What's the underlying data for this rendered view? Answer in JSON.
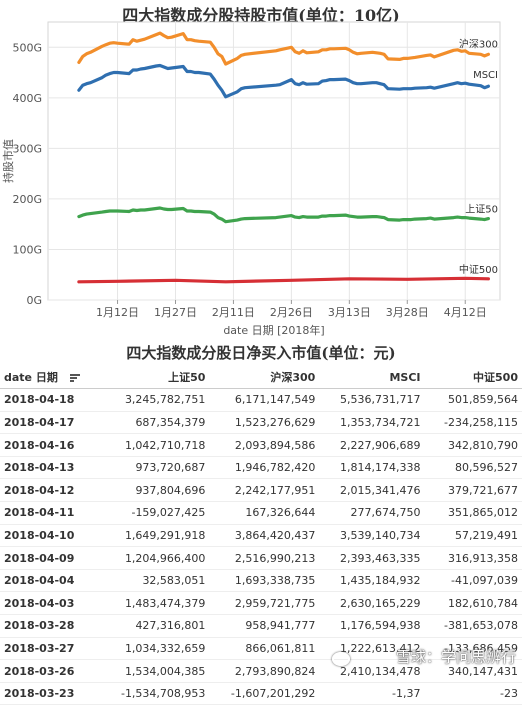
{
  "chart_data": {
    "type": "line",
    "title": "四大指数成分股持股市值(单位：10亿)",
    "xlabel": "date 日期 [2018年]",
    "ylabel": "持股市值",
    "x_ticks": [
      "1月12日",
      "1月27日",
      "2月11日",
      "2月26日",
      "3月13日",
      "3月28日",
      "4月12日"
    ],
    "y_ticks": [
      "0G",
      "100G",
      "200G",
      "300G",
      "400G",
      "500G"
    ],
    "ylim": [
      0,
      550
    ],
    "x_start": "2018-01-02",
    "x_end": "2018-04-18",
    "grid": true,
    "series": [
      {
        "name": "沪深300",
        "color": "#f28e2b",
        "x": [
          "2018-01-02",
          "2018-01-03",
          "2018-01-04",
          "2018-01-05",
          "2018-01-08",
          "2018-01-09",
          "2018-01-10",
          "2018-01-11",
          "2018-01-12",
          "2018-01-15",
          "2018-01-16",
          "2018-01-17",
          "2018-01-18",
          "2018-01-19",
          "2018-01-22",
          "2018-01-23",
          "2018-01-24",
          "2018-01-25",
          "2018-01-26",
          "2018-01-29",
          "2018-01-30",
          "2018-01-31",
          "2018-02-01",
          "2018-02-02",
          "2018-02-05",
          "2018-02-06",
          "2018-02-07",
          "2018-02-08",
          "2018-02-09",
          "2018-02-12",
          "2018-02-13",
          "2018-02-14",
          "2018-02-22",
          "2018-02-23",
          "2018-02-26",
          "2018-02-27",
          "2018-02-28",
          "2018-03-01",
          "2018-03-02",
          "2018-03-05",
          "2018-03-06",
          "2018-03-07",
          "2018-03-08",
          "2018-03-09",
          "2018-03-12",
          "2018-03-13",
          "2018-03-14",
          "2018-03-15",
          "2018-03-16",
          "2018-03-19",
          "2018-03-20",
          "2018-03-21",
          "2018-03-22",
          "2018-03-23",
          "2018-03-26",
          "2018-03-27",
          "2018-03-28",
          "2018-03-29",
          "2018-03-30",
          "2018-04-02",
          "2018-04-03",
          "2018-04-04",
          "2018-04-09",
          "2018-04-10",
          "2018-04-11",
          "2018-04-12",
          "2018-04-13",
          "2018-04-16",
          "2018-04-17",
          "2018-04-18"
        ],
        "values": [
          470,
          482,
          487,
          490,
          502,
          505,
          508,
          509,
          508,
          506,
          515,
          512,
          514,
          516,
          525,
          528,
          523,
          519,
          520,
          527,
          515,
          515,
          513,
          512,
          510,
          500,
          487,
          482,
          467,
          478,
          484,
          486,
          493,
          495,
          500,
          491,
          488,
          493,
          489,
          491,
          495,
          495,
          497,
          497,
          498,
          495,
          490,
          487,
          488,
          490,
          489,
          488,
          486,
          477,
          476,
          478,
          478,
          479,
          480,
          484,
          485,
          481,
          494,
          495,
          492,
          493,
          488,
          486,
          483,
          486
        ]
      },
      {
        "name": "MSCI",
        "color": "#2f6fb0",
        "x": [
          "2018-01-02",
          "2018-01-03",
          "2018-01-04",
          "2018-01-05",
          "2018-01-08",
          "2018-01-09",
          "2018-01-10",
          "2018-01-11",
          "2018-01-12",
          "2018-01-15",
          "2018-01-16",
          "2018-01-17",
          "2018-01-18",
          "2018-01-19",
          "2018-01-22",
          "2018-01-23",
          "2018-01-24",
          "2018-01-25",
          "2018-01-26",
          "2018-01-29",
          "2018-01-30",
          "2018-01-31",
          "2018-02-01",
          "2018-02-02",
          "2018-02-05",
          "2018-02-06",
          "2018-02-07",
          "2018-02-08",
          "2018-02-09",
          "2018-02-12",
          "2018-02-13",
          "2018-02-14",
          "2018-02-22",
          "2018-02-23",
          "2018-02-26",
          "2018-02-27",
          "2018-02-28",
          "2018-03-01",
          "2018-03-02",
          "2018-03-05",
          "2018-03-06",
          "2018-03-07",
          "2018-03-08",
          "2018-03-09",
          "2018-03-12",
          "2018-03-13",
          "2018-03-14",
          "2018-03-15",
          "2018-03-16",
          "2018-03-19",
          "2018-03-20",
          "2018-03-21",
          "2018-03-22",
          "2018-03-23",
          "2018-03-26",
          "2018-03-27",
          "2018-03-28",
          "2018-03-29",
          "2018-03-30",
          "2018-04-02",
          "2018-04-03",
          "2018-04-04",
          "2018-04-09",
          "2018-04-10",
          "2018-04-11",
          "2018-04-12",
          "2018-04-13",
          "2018-04-16",
          "2018-04-17",
          "2018-04-18"
        ],
        "values": [
          415,
          425,
          428,
          430,
          440,
          445,
          448,
          450,
          450,
          448,
          455,
          455,
          457,
          458,
          463,
          464,
          461,
          458,
          459,
          462,
          452,
          452,
          450,
          450,
          447,
          437,
          425,
          415,
          402,
          412,
          418,
          420,
          425,
          426,
          436,
          428,
          426,
          430,
          427,
          428,
          433,
          434,
          436,
          436,
          437,
          434,
          430,
          428,
          428,
          430,
          430,
          428,
          426,
          418,
          417,
          418,
          418,
          418,
          419,
          420,
          421,
          419,
          428,
          430,
          428,
          429,
          427,
          424,
          420,
          423
        ]
      },
      {
        "name": "上证50",
        "color": "#3fa34d",
        "x": [
          "2018-01-02",
          "2018-01-03",
          "2018-01-04",
          "2018-01-05",
          "2018-01-08",
          "2018-01-09",
          "2018-01-10",
          "2018-01-11",
          "2018-01-12",
          "2018-01-15",
          "2018-01-16",
          "2018-01-17",
          "2018-01-18",
          "2018-01-19",
          "2018-01-22",
          "2018-01-23",
          "2018-01-24",
          "2018-01-25",
          "2018-01-26",
          "2018-01-29",
          "2018-01-30",
          "2018-01-31",
          "2018-02-01",
          "2018-02-02",
          "2018-02-05",
          "2018-02-06",
          "2018-02-07",
          "2018-02-08",
          "2018-02-09",
          "2018-02-12",
          "2018-02-13",
          "2018-02-14",
          "2018-02-22",
          "2018-02-23",
          "2018-02-26",
          "2018-02-27",
          "2018-02-28",
          "2018-03-01",
          "2018-03-02",
          "2018-03-05",
          "2018-03-06",
          "2018-03-07",
          "2018-03-08",
          "2018-03-09",
          "2018-03-12",
          "2018-03-13",
          "2018-03-14",
          "2018-03-15",
          "2018-03-16",
          "2018-03-19",
          "2018-03-20",
          "2018-03-21",
          "2018-03-22",
          "2018-03-23",
          "2018-03-26",
          "2018-03-27",
          "2018-03-28",
          "2018-03-29",
          "2018-03-30",
          "2018-04-02",
          "2018-04-03",
          "2018-04-04",
          "2018-04-09",
          "2018-04-10",
          "2018-04-11",
          "2018-04-12",
          "2018-04-13",
          "2018-04-16",
          "2018-04-17",
          "2018-04-18"
        ],
        "values": [
          165,
          168,
          170,
          171,
          174,
          175,
          176,
          176,
          176,
          175,
          178,
          177,
          178,
          178,
          181,
          182,
          180,
          179,
          179,
          181,
          176,
          176,
          175,
          175,
          174,
          170,
          163,
          160,
          155,
          158,
          160,
          161,
          163,
          164,
          167,
          164,
          163,
          165,
          164,
          164,
          166,
          166,
          167,
          167,
          168,
          166,
          165,
          164,
          164,
          165,
          165,
          164,
          163,
          159,
          158,
          159,
          159,
          159,
          160,
          161,
          162,
          160,
          163,
          164,
          163,
          163,
          162,
          160,
          159,
          161
        ]
      },
      {
        "name": "中证500",
        "color": "#d62f35",
        "x": [
          "2018-01-02",
          "2018-01-12",
          "2018-01-27",
          "2018-02-09",
          "2018-02-26",
          "2018-03-13",
          "2018-03-28",
          "2018-04-12",
          "2018-04-18"
        ],
        "values": [
          36,
          37,
          39,
          36,
          39,
          42,
          41,
          43,
          42
        ]
      }
    ]
  },
  "table": {
    "title": "四大指数成分股日净买入市值(单位：元)",
    "headers": [
      "date 日期",
      "上证50",
      "沪深300",
      "MSCI",
      "中证500"
    ],
    "rows": [
      [
        "2018-04-18",
        "3,245,782,751",
        "6,171,147,549",
        "5,536,731,717",
        "501,859,564"
      ],
      [
        "2018-04-17",
        "687,354,379",
        "1,523,276,629",
        "1,353,734,721",
        "-234,258,115"
      ],
      [
        "2018-04-16",
        "1,042,710,718",
        "2,093,894,586",
        "2,227,906,689",
        "342,810,790"
      ],
      [
        "2018-04-13",
        "973,720,687",
        "1,946,782,420",
        "1,814,174,338",
        "80,596,527"
      ],
      [
        "2018-04-12",
        "937,804,696",
        "2,242,177,951",
        "2,015,341,476",
        "379,721,677"
      ],
      [
        "2018-04-11",
        "-159,027,425",
        "167,326,644",
        "277,674,750",
        "351,865,012"
      ],
      [
        "2018-04-10",
        "1,649,291,918",
        "3,864,420,437",
        "3,539,140,734",
        "57,219,491"
      ],
      [
        "2018-04-09",
        "1,204,966,400",
        "2,516,990,213",
        "2,393,463,335",
        "316,913,358"
      ],
      [
        "2018-04-04",
        "32,583,051",
        "1,693,338,735",
        "1,435,184,932",
        "-41,097,039"
      ],
      [
        "2018-04-03",
        "1,483,474,379",
        "2,959,721,775",
        "2,630,165,229",
        "182,610,784"
      ],
      [
        "2018-03-28",
        "427,316,801",
        "958,941,777",
        "1,176,594,938",
        "-381,653,078"
      ],
      [
        "2018-03-27",
        "1,034,332,659",
        "866,061,811",
        "1,222,613,412",
        "-133,686,459"
      ],
      [
        "2018-03-26",
        "1,534,004,385",
        "2,793,890,824",
        "2,410,134,478",
        "340,147,431"
      ],
      [
        "2018-03-23",
        "-1,534,708,953",
        "-1,607,201,292",
        "-1,37",
        "-23"
      ]
    ]
  },
  "watermark": "雪球：学问思辨行",
  "colors": {
    "grid": "#e6e6e6",
    "axis": "#999999",
    "text": "#333333"
  }
}
